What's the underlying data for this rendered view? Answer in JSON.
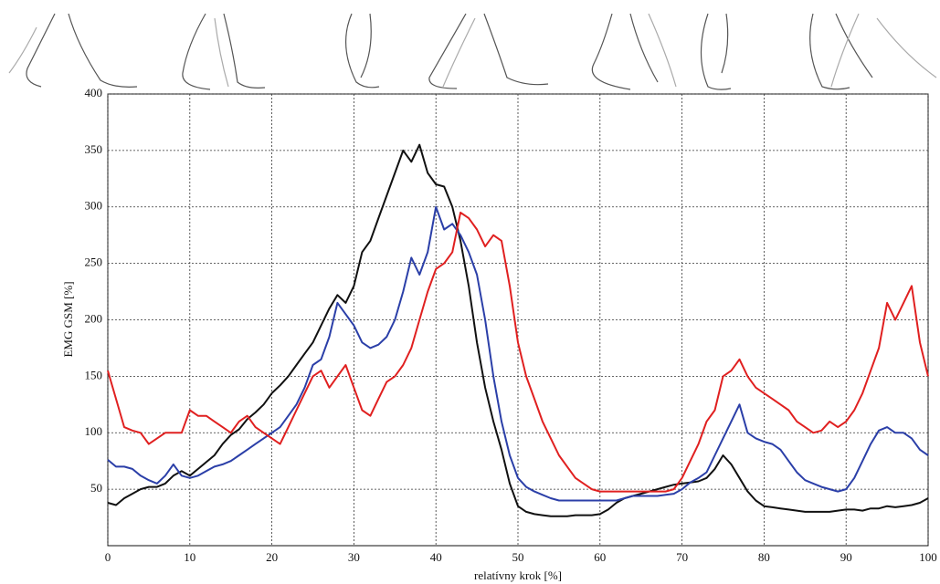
{
  "chart_data": {
    "type": "line",
    "x_label": "relatívny krok [%]",
    "y_label": "EMG GSM [%]",
    "x": [
      0,
      1,
      2,
      3,
      4,
      5,
      6,
      7,
      8,
      9,
      10,
      11,
      12,
      13,
      14,
      15,
      16,
      17,
      18,
      19,
      20,
      21,
      22,
      23,
      24,
      25,
      26,
      27,
      28,
      29,
      30,
      31,
      32,
      33,
      34,
      35,
      36,
      37,
      38,
      39,
      40,
      41,
      42,
      43,
      44,
      45,
      46,
      47,
      48,
      49,
      50,
      51,
      52,
      53,
      54,
      55,
      56,
      57,
      58,
      59,
      60,
      61,
      62,
      63,
      64,
      65,
      66,
      67,
      68,
      69,
      70,
      71,
      72,
      73,
      74,
      75,
      76,
      77,
      78,
      79,
      80,
      81,
      82,
      83,
      84,
      85,
      86,
      87,
      88,
      89,
      90,
      91,
      92,
      93,
      94,
      95,
      96,
      97,
      98,
      99,
      100
    ],
    "series": [
      {
        "color": "#111111",
        "values": [
          38,
          36,
          42,
          46,
          50,
          52,
          52,
          55,
          62,
          66,
          62,
          68,
          74,
          80,
          90,
          98,
          103,
          112,
          118,
          125,
          135,
          142,
          150,
          160,
          170,
          180,
          195,
          210,
          222,
          215,
          230,
          260,
          270,
          290,
          310,
          330,
          350,
          340,
          355,
          330,
          320,
          318,
          300,
          270,
          230,
          180,
          140,
          110,
          85,
          55,
          35,
          30,
          28,
          27,
          26,
          26,
          26,
          27,
          27,
          27,
          28,
          32,
          38,
          42,
          44,
          46,
          48,
          50,
          52,
          54,
          55,
          56,
          57,
          60,
          68,
          80,
          72,
          60,
          48,
          40,
          35,
          34,
          33,
          32,
          31,
          30,
          30,
          30,
          30,
          31,
          32,
          32,
          31,
          33,
          33,
          35,
          34,
          35,
          36,
          38,
          42
        ]
      },
      {
        "color": "#2b3fa8",
        "values": [
          76,
          70,
          70,
          68,
          62,
          58,
          55,
          62,
          72,
          62,
          60,
          62,
          66,
          70,
          72,
          75,
          80,
          85,
          90,
          95,
          100,
          105,
          115,
          125,
          140,
          160,
          165,
          185,
          215,
          205,
          195,
          180,
          175,
          178,
          185,
          200,
          225,
          255,
          240,
          260,
          300,
          280,
          285,
          275,
          260,
          240,
          200,
          150,
          110,
          80,
          60,
          52,
          48,
          45,
          42,
          40,
          40,
          40,
          40,
          40,
          40,
          40,
          40,
          42,
          44,
          44,
          44,
          44,
          45,
          46,
          50,
          56,
          60,
          65,
          80,
          95,
          110,
          125,
          100,
          95,
          92,
          90,
          85,
          75,
          65,
          58,
          55,
          52,
          50,
          48,
          50,
          60,
          75,
          90,
          102,
          105,
          100,
          100,
          95,
          85,
          80
        ]
      },
      {
        "color": "#e02020",
        "values": [
          155,
          130,
          105,
          102,
          100,
          90,
          95,
          100,
          100,
          100,
          120,
          115,
          115,
          110,
          105,
          100,
          110,
          115,
          105,
          100,
          95,
          90,
          105,
          120,
          135,
          150,
          155,
          140,
          150,
          160,
          140,
          120,
          115,
          130,
          145,
          150,
          160,
          175,
          200,
          225,
          245,
          250,
          260,
          295,
          290,
          280,
          265,
          275,
          270,
          230,
          180,
          150,
          130,
          110,
          95,
          80,
          70,
          60,
          55,
          50,
          48,
          48,
          48,
          48,
          48,
          48,
          48,
          48,
          48,
          50,
          60,
          75,
          90,
          110,
          120,
          150,
          155,
          165,
          150,
          140,
          135,
          130,
          125,
          120,
          110,
          105,
          100,
          102,
          110,
          105,
          110,
          120,
          135,
          155,
          175,
          215,
          200,
          215,
          230,
          180,
          150
        ]
      }
    ],
    "xlim": [
      0,
      100
    ],
    "ylim": [
      0,
      400
    ],
    "xticks": [
      0,
      10,
      20,
      30,
      40,
      50,
      60,
      70,
      80,
      90,
      100
    ],
    "yticks": [
      50,
      100,
      150,
      200,
      250,
      300,
      350,
      400
    ],
    "grid": true
  }
}
